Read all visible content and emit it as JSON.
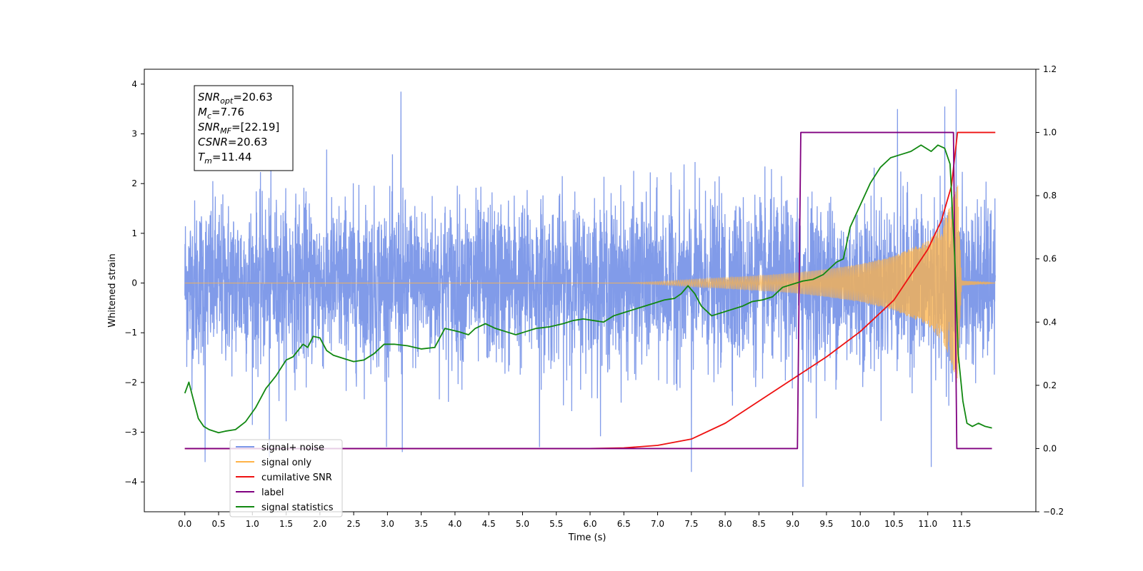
{
  "chart_data": {
    "type": "line",
    "xlabel": "Time (s)",
    "ylabel": "Whitened strain",
    "xlim": [
      -0.6,
      12.6
    ],
    "ylim": [
      -4.6,
      4.3
    ],
    "y2lim": [
      -0.2,
      1.2
    ],
    "grid": false,
    "legend_position": "lower-left",
    "x_ticks": [
      0.0,
      0.5,
      1.0,
      1.5,
      2.0,
      2.5,
      3.0,
      3.5,
      4.0,
      4.5,
      5.0,
      5.5,
      6.0,
      6.5,
      7.0,
      7.5,
      8.0,
      8.5,
      9.0,
      9.5,
      10.0,
      10.5,
      11.0,
      11.5
    ],
    "x_tick_labels": [
      "0.0",
      "0.5",
      "1.0",
      "1.5",
      "2.0",
      "2.5",
      "3.0",
      "3.5",
      "4.0",
      "4.5",
      "5.0",
      "5.5",
      "6.0",
      "6.5",
      "7.0",
      "7.5",
      "8.0",
      "8.5",
      "9.0",
      "9.5",
      "10.0",
      "10.5",
      "11.0",
      "11.5"
    ],
    "y_ticks": [
      -4,
      -3,
      -2,
      -1,
      0,
      1,
      2,
      3,
      4
    ],
    "y_tick_labels": [
      "−4",
      "−3",
      "−2",
      "−1",
      "0",
      "1",
      "2",
      "3",
      "4"
    ],
    "y2_ticks": [
      -0.2,
      0.0,
      0.2,
      0.4,
      0.6,
      0.8,
      1.0,
      1.2
    ],
    "y2_tick_labels": [
      "−0.2",
      "0.0",
      "0.2",
      "0.4",
      "0.6",
      "0.8",
      "1.0",
      "1.2"
    ],
    "annotations": [
      {
        "base": "SNR",
        "sub": "opt",
        "value": "=20.63"
      },
      {
        "base": "M",
        "sub": "c",
        "value": "=7.76"
      },
      {
        "base": "SNR",
        "sub": "MF",
        "value": "=[22.19]"
      },
      {
        "base": "CSNR",
        "sub": "",
        "value": "=20.63"
      },
      {
        "base": "T",
        "sub": "m",
        "value": "=11.44"
      }
    ],
    "series": [
      {
        "name": "signal+ noise",
        "color": "#7a96e8",
        "axis": "left",
        "description_kind": "noise",
        "x_range": [
          0.0,
          12.0
        ],
        "sigma": 1.0,
        "peaks": [
          [
            0.3,
            -3.6
          ],
          [
            1.25,
            -3.5
          ],
          [
            3.2,
            3.85
          ],
          [
            3.22,
            -3.4
          ],
          [
            5.25,
            -3.3
          ],
          [
            7.5,
            -3.8
          ],
          [
            9.15,
            -4.1
          ],
          [
            10.55,
            3.5
          ],
          [
            11.05,
            -3.7
          ],
          [
            11.25,
            3.55
          ],
          [
            11.42,
            3.9
          ]
        ]
      },
      {
        "name": "signal only",
        "color": "#ffb347",
        "axis": "left",
        "description_kind": "chirp",
        "envelope": {
          "x": [
            0.0,
            6.5,
            7.0,
            7.5,
            8.0,
            8.5,
            9.0,
            9.5,
            10.0,
            10.5,
            11.0,
            11.2,
            11.35,
            11.44,
            11.5,
            12.0
          ],
          "amp": [
            0.0,
            0.0,
            0.03,
            0.07,
            0.11,
            0.15,
            0.2,
            0.28,
            0.38,
            0.55,
            0.85,
            1.15,
            1.6,
            2.1,
            0.05,
            0.0
          ]
        }
      },
      {
        "name": "cumilative SNR",
        "color": "#ee1111",
        "axis": "right",
        "x": [
          0.0,
          6.0,
          6.5,
          7.0,
          7.5,
          8.0,
          8.5,
          9.0,
          9.5,
          10.0,
          10.5,
          11.0,
          11.2,
          11.35,
          11.44,
          12.0
        ],
        "values": [
          0.0,
          0.0,
          0.002,
          0.01,
          0.03,
          0.08,
          0.15,
          0.22,
          0.29,
          0.37,
          0.47,
          0.63,
          0.72,
          0.83,
          1.0,
          1.0
        ]
      },
      {
        "name": "label",
        "color": "#800080",
        "axis": "right",
        "x": [
          0.0,
          9.07,
          9.12,
          11.38,
          11.43,
          11.95
        ],
        "values": [
          0.0,
          0.0,
          1.0,
          1.0,
          0.0,
          0.0
        ]
      },
      {
        "name": "signal statistics",
        "color": "#118811",
        "axis": "right",
        "x": [
          0.0,
          0.06,
          0.12,
          0.2,
          0.28,
          0.36,
          0.5,
          0.6,
          0.75,
          0.9,
          1.05,
          1.2,
          1.35,
          1.5,
          1.6,
          1.75,
          1.82,
          1.9,
          2.0,
          2.1,
          2.2,
          2.35,
          2.5,
          2.65,
          2.8,
          2.95,
          3.1,
          3.3,
          3.5,
          3.7,
          3.85,
          3.95,
          4.05,
          4.2,
          4.3,
          4.45,
          4.6,
          4.75,
          4.9,
          5.05,
          5.2,
          5.4,
          5.6,
          5.75,
          5.9,
          6.05,
          6.2,
          6.35,
          6.5,
          6.65,
          6.8,
          6.95,
          7.1,
          7.25,
          7.35,
          7.45,
          7.55,
          7.65,
          7.8,
          7.95,
          8.1,
          8.25,
          8.4,
          8.55,
          8.7,
          8.85,
          9.0,
          9.15,
          9.3,
          9.45,
          9.55,
          9.65,
          9.75,
          9.85,
          10.0,
          10.15,
          10.3,
          10.45,
          10.6,
          10.75,
          10.9,
          11.05,
          11.15,
          11.25,
          11.33,
          11.4,
          11.45,
          11.52,
          11.58,
          11.66,
          11.75,
          11.85,
          11.95
        ],
        "values": [
          0.175,
          0.21,
          0.16,
          0.095,
          0.07,
          0.06,
          0.05,
          0.055,
          0.06,
          0.085,
          0.13,
          0.19,
          0.23,
          0.28,
          0.29,
          0.33,
          0.32,
          0.355,
          0.35,
          0.31,
          0.295,
          0.285,
          0.275,
          0.28,
          0.3,
          0.33,
          0.33,
          0.325,
          0.315,
          0.32,
          0.38,
          0.375,
          0.37,
          0.36,
          0.38,
          0.395,
          0.38,
          0.37,
          0.36,
          0.37,
          0.38,
          0.385,
          0.395,
          0.405,
          0.41,
          0.405,
          0.4,
          0.42,
          0.43,
          0.44,
          0.45,
          0.46,
          0.47,
          0.475,
          0.49,
          0.515,
          0.49,
          0.45,
          0.42,
          0.43,
          0.44,
          0.45,
          0.465,
          0.47,
          0.48,
          0.51,
          0.52,
          0.53,
          0.535,
          0.55,
          0.57,
          0.59,
          0.6,
          0.7,
          0.77,
          0.84,
          0.89,
          0.92,
          0.93,
          0.94,
          0.96,
          0.94,
          0.96,
          0.95,
          0.9,
          0.6,
          0.3,
          0.15,
          0.08,
          0.07,
          0.08,
          0.07,
          0.065
        ]
      }
    ],
    "legend_entries": [
      {
        "label": "signal+ noise",
        "color": "#7a96e8"
      },
      {
        "label": "signal only",
        "color": "#ffb347"
      },
      {
        "label": "cumilative SNR",
        "color": "#ee1111"
      },
      {
        "label": "label",
        "color": "#800080"
      },
      {
        "label": "signal statistics",
        "color": "#118811"
      }
    ]
  }
}
